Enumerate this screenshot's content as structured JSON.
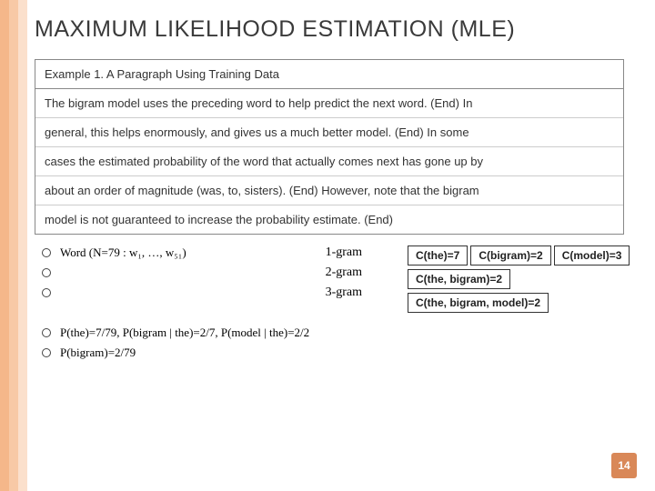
{
  "stripes": {
    "colors": [
      "#f5b78a",
      "#f8c9a6",
      "#fbe0cc"
    ]
  },
  "title": "MAXIMUM LIKELIHOOD ESTIMATION (MLE)",
  "example": {
    "header": "Example 1. A Paragraph Using Training Data",
    "rows": [
      "The bigram model uses the preceding word to help predict the next word. (End) In",
      "general, this helps enormously, and gives us a much better model. (End) In some",
      "cases the estimated probability of the word that actually comes next has gone up by",
      "about an order of magnitude (was, to, sisters). (End) However, note that the bigram",
      "model is not guaranteed to increase the probability estimate. (End)"
    ]
  },
  "grams": [
    {
      "label": "Word (N=79 : w₁, …, w₅₁)",
      "type": "1-gram"
    },
    {
      "label": "",
      "type": "2-gram"
    },
    {
      "label": "",
      "type": "3-gram"
    }
  ],
  "counts": {
    "row1": [
      "C(the)=7",
      "C(bigram)=2",
      "C(model)=3"
    ],
    "row2": [
      "C(the, bigram)=2"
    ],
    "row3": [
      "C(the, bigram, model)=2"
    ]
  },
  "probs": [
    "P(the)=7/79, P(bigram | the)=2/7, P(model | the)=2/2",
    "P(bigram)=2/79"
  ],
  "page_number": "14"
}
